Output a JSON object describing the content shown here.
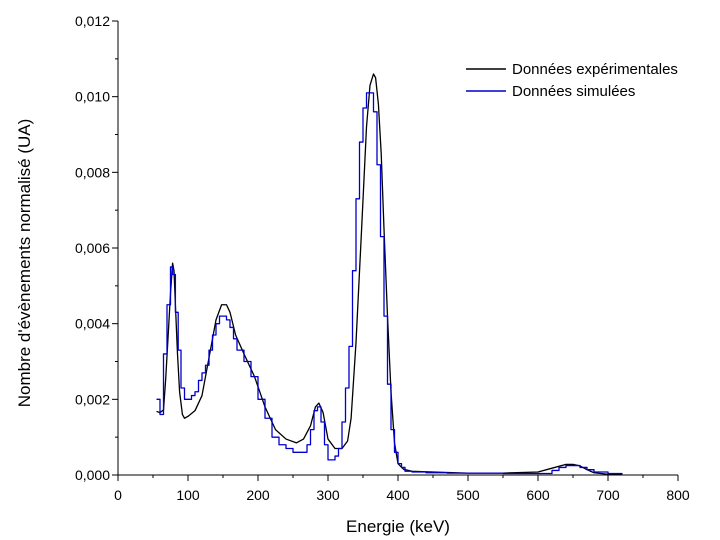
{
  "chart_data": {
    "type": "line",
    "title": "",
    "xlabel": "Energie (keV)",
    "ylabel": "Nombre d'évènements normalisé (UA)",
    "xlim": [
      0,
      800
    ],
    "ylim": [
      0,
      0.012
    ],
    "x_ticks": [
      0,
      100,
      200,
      300,
      400,
      500,
      600,
      700,
      800
    ],
    "x_tick_labels": [
      "0",
      "100",
      "200",
      "300",
      "400",
      "500",
      "600",
      "700",
      "800"
    ],
    "y_ticks": [
      0,
      0.002,
      0.004,
      0.006,
      0.008,
      0.01,
      0.012
    ],
    "y_tick_labels": [
      "0,000",
      "0,002",
      "0,004",
      "0,006",
      "0,008",
      "0,010",
      "0,012"
    ],
    "grid": false,
    "legend_position": "top-right",
    "series": [
      {
        "name": "Données expérimentales",
        "color": "#000000",
        "style": "line",
        "x": [
          55,
          60,
          65,
          68,
          72,
          75,
          78,
          80,
          82,
          85,
          88,
          92,
          95,
          100,
          110,
          120,
          130,
          140,
          148,
          155,
          160,
          168,
          180,
          195,
          210,
          225,
          240,
          255,
          265,
          275,
          282,
          287,
          293,
          300,
          310,
          320,
          328,
          333,
          340,
          348,
          355,
          360,
          365,
          368,
          372,
          376,
          380,
          385,
          390,
          395,
          400,
          408,
          420,
          450,
          500,
          550,
          600,
          620,
          640,
          650,
          660,
          670,
          680,
          700,
          720
        ],
        "y": [
          0.00168,
          0.00165,
          0.00172,
          0.0025,
          0.0038,
          0.0048,
          0.0056,
          0.0054,
          0.0045,
          0.0032,
          0.0022,
          0.0016,
          0.0015,
          0.00155,
          0.0017,
          0.0021,
          0.0031,
          0.0041,
          0.0045,
          0.0045,
          0.0043,
          0.0037,
          0.0032,
          0.0026,
          0.0018,
          0.0012,
          0.00095,
          0.00085,
          0.00095,
          0.0013,
          0.0018,
          0.0019,
          0.00165,
          0.00095,
          0.0007,
          0.0007,
          0.0009,
          0.0015,
          0.0035,
          0.0065,
          0.0092,
          0.0103,
          0.0106,
          0.0105,
          0.0098,
          0.0085,
          0.0065,
          0.0042,
          0.0022,
          0.00085,
          0.0003,
          0.00015,
          0.0001,
          8e-05,
          5e-05,
          5e-05,
          8e-05,
          0.00018,
          0.00028,
          0.00028,
          0.00024,
          0.00014,
          6e-05,
          2e-05,
          2e-05
        ]
      },
      {
        "name": "Données simulées",
        "color": "#0000cc",
        "style": "step",
        "x": [
          55,
          60,
          65,
          70,
          75,
          78,
          82,
          86,
          90,
          95,
          100,
          105,
          110,
          115,
          120,
          125,
          130,
          135,
          140,
          145,
          150,
          155,
          160,
          165,
          170,
          180,
          190,
          200,
          210,
          220,
          230,
          240,
          250,
          260,
          270,
          275,
          280,
          285,
          290,
          295,
          300,
          305,
          310,
          315,
          320,
          325,
          330,
          335,
          340,
          345,
          350,
          355,
          360,
          365,
          370,
          375,
          380,
          385,
          390,
          395,
          400,
          405,
          410,
          420,
          440,
          470,
          500,
          550,
          600,
          620,
          630,
          640,
          650,
          660,
          670,
          680,
          700,
          720
        ],
        "y": [
          0.002,
          0.0016,
          0.0032,
          0.0045,
          0.0055,
          0.0053,
          0.0043,
          0.0033,
          0.0023,
          0.002,
          0.002,
          0.0021,
          0.0022,
          0.0025,
          0.0027,
          0.0029,
          0.0033,
          0.0037,
          0.004,
          0.0042,
          0.0042,
          0.0041,
          0.0039,
          0.0036,
          0.0033,
          0.003,
          0.0026,
          0.002,
          0.0015,
          0.001,
          0.0008,
          0.0007,
          0.0006,
          0.0006,
          0.0008,
          0.0012,
          0.0017,
          0.0018,
          0.0014,
          0.0008,
          0.0004,
          0.0004,
          0.0005,
          0.0007,
          0.0014,
          0.0023,
          0.0034,
          0.0054,
          0.0073,
          0.0088,
          0.0097,
          0.0101,
          0.0101,
          0.0096,
          0.0082,
          0.0063,
          0.0042,
          0.0024,
          0.0012,
          0.0006,
          0.0003,
          0.0002,
          0.0001,
          8e-05,
          6e-05,
          5e-05,
          5e-05,
          4e-05,
          4e-05,
          0.00012,
          0.0002,
          0.00025,
          0.00025,
          0.0002,
          0.00014,
          8e-05,
          4e-05,
          2e-05
        ]
      }
    ]
  }
}
